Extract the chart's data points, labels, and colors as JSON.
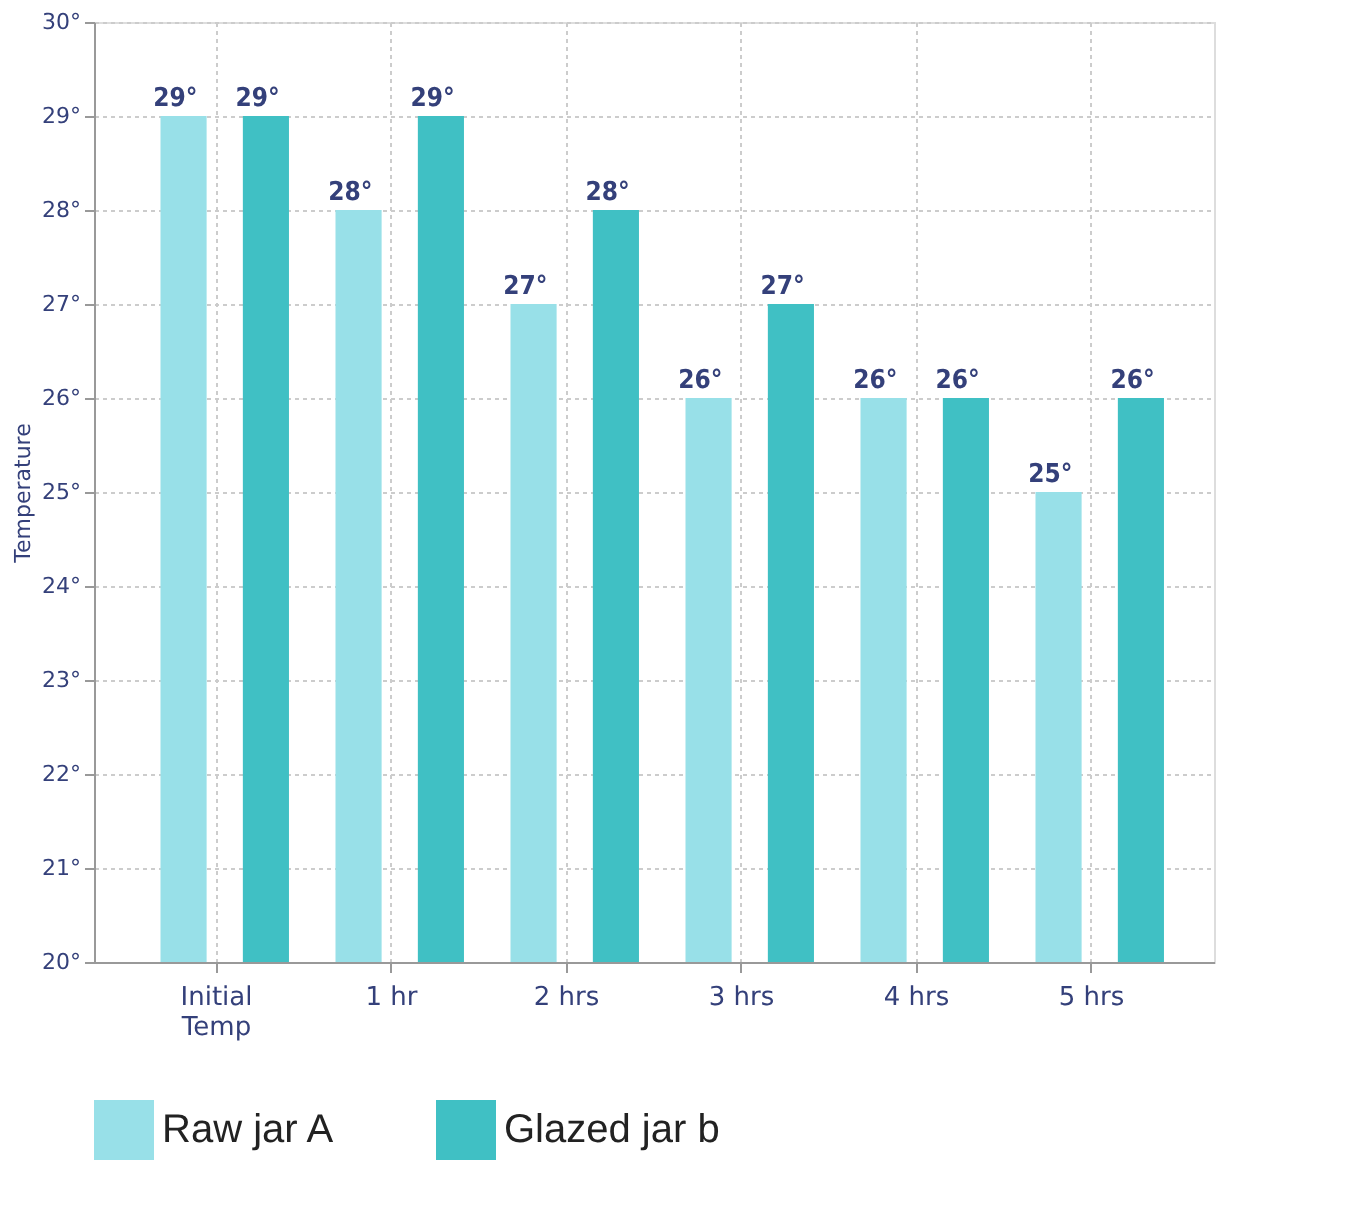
{
  "chart_data": {
    "type": "bar",
    "ylabel": "Temperature",
    "categories": [
      "Initial\nTemp",
      "1 hr",
      "2 hrs",
      "3 hrs",
      "4 hrs",
      "5 hrs"
    ],
    "series": [
      {
        "name": "Raw jar A",
        "color": "#98e0e8",
        "values": [
          29,
          28,
          27,
          26,
          26,
          25
        ],
        "value_labels": [
          "29°",
          "28°",
          "27°",
          "26°",
          "26°",
          "25°"
        ]
      },
      {
        "name": "Glazed jar b",
        "color": "#40c0c4",
        "values": [
          29,
          29,
          28,
          27,
          26,
          26
        ],
        "value_labels": [
          "29°",
          "29°",
          "28°",
          "27°",
          "26°",
          "26°"
        ]
      }
    ],
    "ylim": [
      20,
      30
    ],
    "yticks": [
      {
        "value": 20,
        "label": "20°"
      },
      {
        "value": 21,
        "label": "21°"
      },
      {
        "value": 22,
        "label": "22°"
      },
      {
        "value": 23,
        "label": "23°"
      },
      {
        "value": 24,
        "label": "24°"
      },
      {
        "value": 25,
        "label": "25°"
      },
      {
        "value": 26,
        "label": "26°"
      },
      {
        "value": 27,
        "label": "27°"
      },
      {
        "value": 28,
        "label": "28°"
      },
      {
        "value": 29,
        "label": "29°"
      },
      {
        "value": 30,
        "label": "30°"
      }
    ],
    "grid": true,
    "legend": "bottom"
  }
}
